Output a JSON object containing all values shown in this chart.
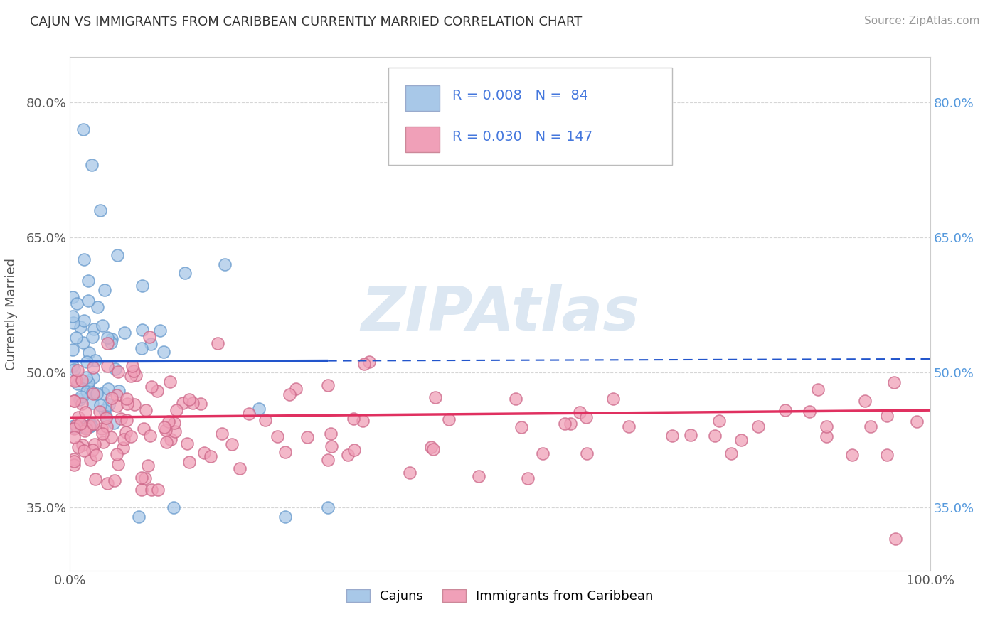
{
  "title": "CAJUN VS IMMIGRANTS FROM CARIBBEAN CURRENTLY MARRIED CORRELATION CHART",
  "source": "Source: ZipAtlas.com",
  "ylabel": "Currently Married",
  "xlim": [
    0,
    100
  ],
  "ylim": [
    28,
    85
  ],
  "yticks": [
    35,
    50,
    65,
    80
  ],
  "ytick_labels": [
    "35.0%",
    "50.0%",
    "65.0%",
    "80.0%"
  ],
  "xtick_labels": [
    "0.0%",
    "100.0%"
  ],
  "xticks": [
    0,
    100
  ],
  "legend1_label": "Cajuns",
  "legend2_label": "Immigrants from Caribbean",
  "R1": "0.008",
  "N1": "84",
  "R2": "0.030",
  "N2": "147",
  "blue_color": "#A8C8E8",
  "pink_color": "#F0A0B8",
  "blue_line_color": "#2255CC",
  "pink_line_color": "#E03060",
  "grid_color": "#CCCCCC",
  "background_color": "#FFFFFF",
  "watermark": "ZIPAtlas",
  "watermark_color": "#C0D4E8",
  "legend_text_color": "#4477DD",
  "right_axis_color": "#5599DD"
}
